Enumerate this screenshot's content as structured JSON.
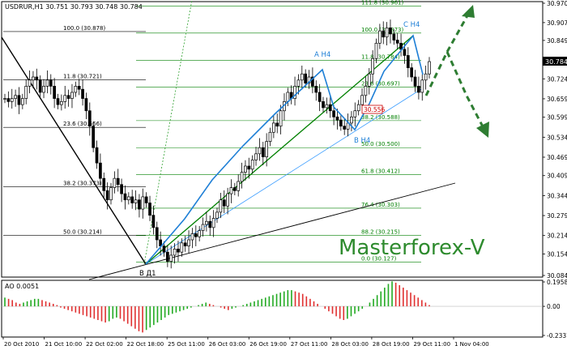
{
  "header": {
    "symbol": "USDRUR,H1",
    "ohlc": "30.751 30.793 30.748 30.784"
  },
  "watermark": "Masterforex-V",
  "chart_data": {
    "type": "candlestick",
    "symbol": "USDRUR",
    "timeframe": "H1",
    "y_ticks": [
      "30.970",
      "30.907",
      "30.849",
      "30.784",
      "30.724",
      "30.659",
      "30.599",
      "30.534",
      "30.469",
      "30.409",
      "30.344",
      "30.279",
      "30.214",
      "30.154",
      "30.084"
    ],
    "ylim": [
      30.084,
      30.97
    ],
    "x_ticks": [
      "20 Oct 2010",
      "21 Oct 10:00",
      "22 Oct 02:00",
      "22 Oct 18:00",
      "25 Oct 11:00",
      "26 Oct 03:00",
      "26 Oct 19:00",
      "27 Oct 11:00",
      "28 Oct 03:00",
      "28 Oct 19:00",
      "29 Oct 11:00",
      "1 Nov 04:00"
    ],
    "last_price": "30.784",
    "price_tag": "30.556",
    "fib_left": [
      {
        "label": "100.0 (30.878)",
        "price": 30.878
      },
      {
        "label": "11.8 (30.721)",
        "price": 30.721
      },
      {
        "label": "23.6 (30.566)",
        "price": 30.566
      },
      {
        "label": "38.2 (30.373)",
        "price": 30.373
      },
      {
        "label": "50.0 (30.214)",
        "price": 30.214
      }
    ],
    "fib_right": [
      {
        "label": "111.8 (30.961)",
        "price": 30.961
      },
      {
        "label": "100.0 (30.873)",
        "price": 30.873
      },
      {
        "label": "11.8 (30.784)",
        "price": 30.784
      },
      {
        "label": "23.6 (30.697)",
        "price": 30.697
      },
      {
        "label": "38.2 (30.588)",
        "price": 30.588
      },
      {
        "label": "50.0 (30.500)",
        "price": 30.5
      },
      {
        "label": "61.8 (30.412)",
        "price": 30.412
      },
      {
        "label": "76.4 (30.303)",
        "price": 30.303
      },
      {
        "label": "88.2 (30.215)",
        "price": 30.215
      },
      {
        "label": "0.0 (30.127)",
        "price": 30.127
      }
    ],
    "wave_labels": [
      {
        "text": "A H4",
        "price": 30.76
      },
      {
        "text": "B H4",
        "price": 30.55
      },
      {
        "text": "C H4",
        "price": 30.895
      },
      {
        "text": "B Д1",
        "price": 30.127
      }
    ],
    "candles_close": [
      30.66,
      30.65,
      30.66,
      30.67,
      30.64,
      30.66,
      30.7,
      30.72,
      30.73,
      30.72,
      30.68,
      30.7,
      30.72,
      30.7,
      30.66,
      30.64,
      30.65,
      30.67,
      30.66,
      30.68,
      30.7,
      30.69,
      30.66,
      30.62,
      30.57,
      30.5,
      30.45,
      30.4,
      30.36,
      30.33,
      30.37,
      30.4,
      30.38,
      30.35,
      30.33,
      30.34,
      30.32,
      30.33,
      30.3,
      30.34,
      30.32,
      30.28,
      30.24,
      30.2,
      30.18,
      30.16,
      30.13,
      30.15,
      30.17,
      30.16,
      30.19,
      30.18,
      30.2,
      30.22,
      30.21,
      30.23,
      30.25,
      30.26,
      30.24,
      30.27,
      30.29,
      30.33,
      30.31,
      30.35,
      30.37,
      30.36,
      30.39,
      30.42,
      30.44,
      30.43,
      30.46,
      30.48,
      30.5,
      30.47,
      30.52,
      30.55,
      30.58,
      30.57,
      30.62,
      30.65,
      30.68,
      30.66,
      30.7,
      30.72,
      30.74,
      30.71,
      30.73,
      30.7,
      30.68,
      30.65,
      30.63,
      30.64,
      30.62,
      30.6,
      30.59,
      30.57,
      30.56,
      30.58,
      30.6,
      30.62,
      30.64,
      30.67,
      30.7,
      30.74,
      30.79,
      30.84,
      30.88,
      30.86,
      30.89,
      30.87,
      30.85,
      30.84,
      30.82,
      30.8,
      30.76,
      30.73,
      30.7,
      30.68,
      30.72,
      30.74,
      30.78
    ],
    "ao": {
      "label": "AO 0.0051",
      "ticks": [
        "0.1958",
        "0.00",
        "-0.2337"
      ],
      "ylim": [
        -0.2337,
        0.1958
      ],
      "values": [
        0.07,
        0.06,
        0.05,
        0.03,
        0.02,
        0.03,
        0.04,
        0.05,
        0.06,
        0.06,
        0.05,
        0.04,
        0.03,
        0.02,
        0.01,
        -0.01,
        -0.02,
        -0.03,
        -0.04,
        -0.05,
        -0.06,
        -0.07,
        -0.08,
        -0.09,
        -0.1,
        -0.11,
        -0.12,
        -0.13,
        -0.12,
        -0.1,
        -0.09,
        -0.1,
        -0.12,
        -0.14,
        -0.16,
        -0.18,
        -0.2,
        -0.21,
        -0.19,
        -0.17,
        -0.15,
        -0.13,
        -0.11,
        -0.09,
        -0.07,
        -0.06,
        -0.05,
        -0.04,
        -0.03,
        -0.02,
        -0.01,
        0.0,
        0.01,
        0.02,
        0.03,
        0.02,
        0.01,
        0.0,
        -0.01,
        -0.02,
        -0.03,
        -0.02,
        -0.01,
        0.0,
        0.01,
        0.02,
        0.03,
        0.04,
        0.05,
        0.06,
        0.07,
        0.08,
        0.09,
        0.1,
        0.11,
        0.12,
        0.13,
        0.13,
        0.12,
        0.11,
        0.1,
        0.08,
        0.06,
        0.04,
        0.02,
        0.0,
        -0.02,
        -0.04,
        -0.06,
        -0.08,
        -0.1,
        -0.11,
        -0.1,
        -0.08,
        -0.06,
        -0.04,
        -0.02,
        0.0,
        0.03,
        0.06,
        0.09,
        0.12,
        0.15,
        0.18,
        0.2,
        0.19,
        0.17,
        0.15,
        0.13,
        0.11,
        0.09,
        0.07,
        0.05,
        0.03,
        0.01
      ]
    }
  }
}
